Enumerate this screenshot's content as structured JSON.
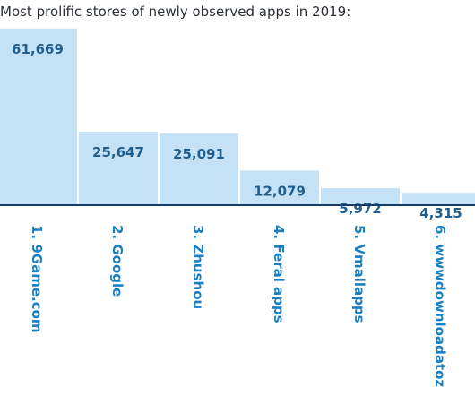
{
  "colors": {
    "bar": "#c5e1f5",
    "axis": "#163b66",
    "value_text": "#1f5f8f",
    "category_text": "#1b7fc0",
    "title_text": "#2a2f36"
  },
  "chart_data": {
    "type": "bar",
    "title": "Most prolific stores of newly observed apps in 2019:",
    "categories": [
      "1. 9Game.com",
      "2. Google",
      "3. Zhushou",
      "4. Feral apps",
      "5. Vmallapps",
      "6. wwwdownloadatoz"
    ],
    "values": [
      61669,
      25647,
      25091,
      12079,
      5972,
      4315
    ],
    "value_labels": [
      "61,669",
      "25,647",
      "25,091",
      "12,079",
      "5,972",
      "4,315"
    ],
    "xlabel": "",
    "ylabel": "",
    "ylim": [
      0,
      66000
    ],
    "grid": false,
    "legend": "none"
  }
}
